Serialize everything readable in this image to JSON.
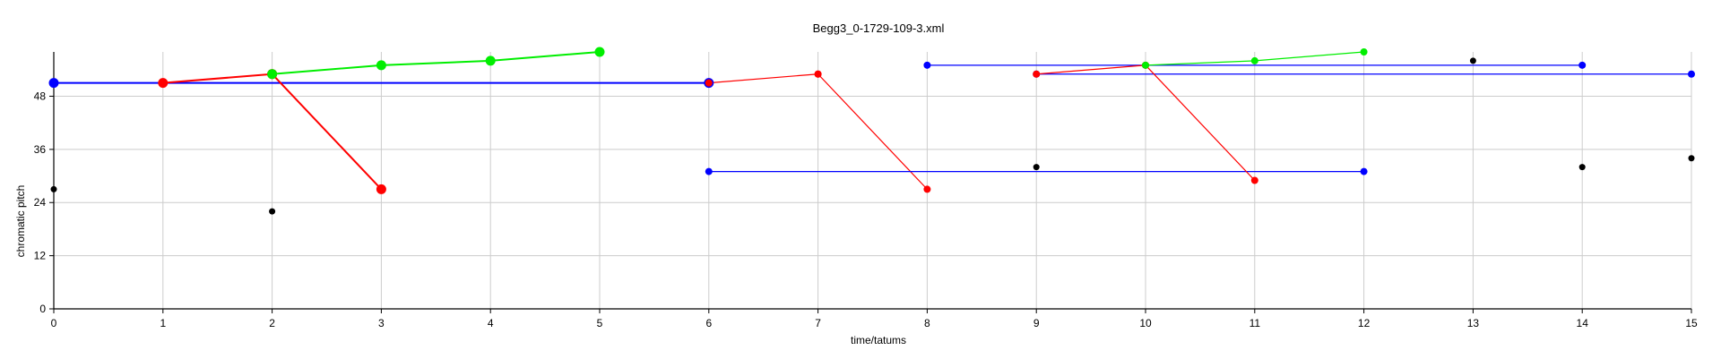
{
  "chart_data": {
    "type": "scatter",
    "title": "Begg3_0-1729-109-3.xml",
    "xlabel": "time/tatums",
    "ylabel": "chromatic pitch",
    "xlim": [
      0,
      15
    ],
    "ylim": [
      0,
      58
    ],
    "xticks": [
      0,
      1,
      2,
      3,
      4,
      5,
      6,
      7,
      8,
      9,
      10,
      11,
      12,
      13,
      14,
      15
    ],
    "yticks": [
      0,
      12,
      24,
      36,
      48
    ],
    "grid": true,
    "black_points": [
      [
        0,
        27
      ],
      [
        2,
        22
      ],
      [
        9,
        32
      ],
      [
        13,
        56
      ],
      [
        14,
        32
      ],
      [
        15,
        34
      ]
    ],
    "segments": [
      {
        "color": "#0000ff",
        "weight": "bold",
        "points": [
          [
            0,
            51
          ],
          [
            6,
            51
          ]
        ]
      },
      {
        "color": "#ff0000",
        "weight": "bold",
        "points": [
          [
            1,
            51
          ],
          [
            2,
            53
          ]
        ]
      },
      {
        "color": "#ff0000",
        "weight": "bold",
        "points": [
          [
            2,
            53
          ],
          [
            3,
            27
          ]
        ]
      },
      {
        "color": "#00ee00",
        "weight": "bold",
        "points": [
          [
            2,
            53
          ],
          [
            3,
            55
          ],
          [
            4,
            56
          ],
          [
            5,
            58
          ]
        ]
      },
      {
        "color": "#ff0000",
        "weight": "thin",
        "points": [
          [
            6,
            51
          ],
          [
            7,
            53
          ]
        ]
      },
      {
        "color": "#ff0000",
        "weight": "thin",
        "points": [
          [
            7,
            53
          ],
          [
            8,
            27
          ]
        ]
      },
      {
        "color": "#0000ff",
        "weight": "thin",
        "points": [
          [
            6,
            31
          ],
          [
            12,
            31
          ]
        ]
      },
      {
        "color": "#0000ff",
        "weight": "thin",
        "points": [
          [
            8,
            55
          ],
          [
            14,
            55
          ]
        ]
      },
      {
        "color": "#0000ff",
        "weight": "thin",
        "points": [
          [
            9,
            53
          ],
          [
            15,
            53
          ]
        ]
      },
      {
        "color": "#ff0000",
        "weight": "thin",
        "points": [
          [
            9,
            53
          ],
          [
            10,
            55
          ]
        ]
      },
      {
        "color": "#ff0000",
        "weight": "thin",
        "points": [
          [
            10,
            55
          ],
          [
            11,
            29
          ]
        ]
      },
      {
        "color": "#00ee00",
        "weight": "thin",
        "points": [
          [
            10,
            55
          ],
          [
            11,
            56
          ],
          [
            12,
            58
          ]
        ]
      }
    ]
  }
}
